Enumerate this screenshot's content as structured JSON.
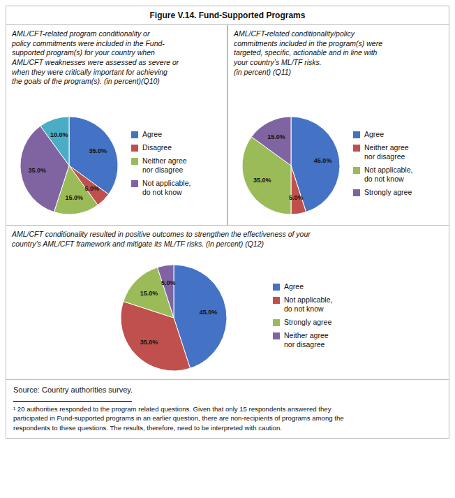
{
  "title": "Figure V.14. Fund-Supported Programs",
  "chart_data": [
    {
      "type": "pie",
      "title": "AML/CFT-related program conditionality or\npolicy commitments were included in the Fund-\nsupported program(s) for your country when\nAML/CFT weaknesses were assessed as severe or\nwhen they were critically important for achieving\nthe goals of the program(s). (in percent)(Q10)",
      "categories": [
        "Agree",
        "Disagree",
        "Neither agree\nnor disagree",
        "Not applicable,\ndo not know",
        null
      ],
      "values": [
        35,
        5,
        15,
        35,
        10
      ],
      "value_labels": [
        "35.0%",
        "5.0%",
        "15.0%",
        "35.0%",
        "10.0%"
      ],
      "colors": [
        "#4472C4",
        "#C0504D",
        "#9BBB59",
        "#8064A2",
        "#4BACC6"
      ],
      "data_labels": true,
      "legend": "right"
    },
    {
      "type": "pie",
      "title": "AML/CFT-related conditionality/policy\ncommitments included in the program(s) were\ntargeted, specific, actionable and in line with\nyour country’s ML/TF risks.\n(in percent) (Q11)",
      "categories": [
        "Agree",
        "Neither agree\nnor disagree",
        "Not applicable,\ndo not know",
        "Strongly agree"
      ],
      "values": [
        45,
        5,
        35,
        15
      ],
      "value_labels": [
        "45.0%",
        "5.0%",
        "35.0%",
        "15.0%"
      ],
      "colors": [
        "#4472C4",
        "#C0504D",
        "#9BBB59",
        "#8064A2"
      ],
      "data_labels": true,
      "legend": "right"
    },
    {
      "type": "pie",
      "title": "AML/CFT conditionality resulted in positive outcomes to strengthen the effectiveness of your\ncountry’s AML/CFT framework and mitigate its ML/TF risks. (in percent) (Q12)",
      "categories": [
        "Agree",
        "Not applicable,\ndo not know",
        "Strongly agree",
        "Neither agree\nnor disagree"
      ],
      "values": [
        45,
        35,
        15,
        5
      ],
      "value_labels": [
        "45.0%",
        "35.0%",
        "15.0%",
        "5.0%"
      ],
      "colors": [
        "#4472C4",
        "#C0504D",
        "#9BBB59",
        "#8064A2"
      ],
      "data_labels": true,
      "legend": "right"
    }
  ],
  "annotations": [
    "Source: Country authorities survey.",
    "¹ 20 authorities responded to the program related questions. Given that only 15 respondents answered they\nparticipated in Fund-supported programs in an earlier question, there are non-recipients of programs among the\nrespondents to these questions. The results, therefore, need to be interpreted with caution."
  ]
}
